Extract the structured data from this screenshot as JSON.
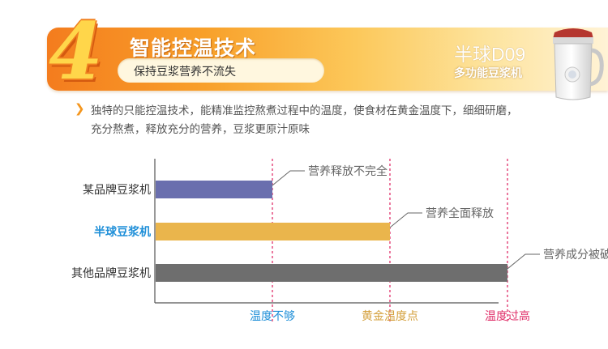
{
  "header": {
    "number": "4",
    "title": "智能控温技术",
    "subtitle": "保持豆浆营养不流失",
    "model": "半球D09",
    "product_name": "多功能豆浆机"
  },
  "description": {
    "lines": [
      "独特的只能控温技术，能精准监控熬煮过程中的温度，使食材在黄金温度下，细细研磨，",
      "充分熬煮，释放充分的营养，豆浆更原汁原味"
    ]
  },
  "colors": {
    "accent": "#f4961e",
    "bar_blue": "#6a6fae",
    "bar_gold": "#eab54c",
    "bar_gray": "#6e6e6e",
    "highlight_text": "#1f8fd8",
    "guide_pink": "#e0306a"
  },
  "chart_data": {
    "type": "bar",
    "orientation": "horizontal",
    "categories": [
      "某品牌豆浆机",
      "半球豆浆机",
      "其他品牌豆浆机"
    ],
    "values": [
      1,
      2,
      3
    ],
    "bar_colors": [
      "#6a6fae",
      "#eab54c",
      "#6e6e6e"
    ],
    "highlight_category": "半球豆浆机",
    "x_ticks": [
      {
        "value": 1,
        "label": "温度不够",
        "color": "#1f8fd8"
      },
      {
        "value": 2,
        "label": "黄金温度点",
        "color": "#d4a03c"
      },
      {
        "value": 3,
        "label": "温度过高",
        "color": "#e0306a"
      }
    ],
    "annotations": [
      "营养释放不完全",
      "营养全面释放",
      "营养成分被破坏"
    ],
    "xlim": [
      0,
      3.2
    ],
    "grid": false
  }
}
